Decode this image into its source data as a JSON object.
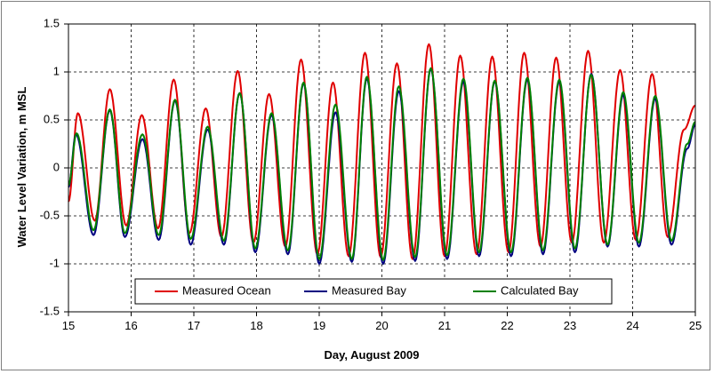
{
  "chart_data": {
    "type": "line",
    "title": "",
    "xlabel": "Day, August 2009",
    "ylabel": "Water Level Variation, m MSL",
    "xlim": [
      15,
      25
    ],
    "ylim": [
      -1.5,
      1.5
    ],
    "x_ticks": [
      "15",
      "16",
      "17",
      "18",
      "19",
      "20",
      "21",
      "22",
      "23",
      "24",
      "25"
    ],
    "y_ticks": [
      "1.5",
      "1",
      "0.5",
      "0",
      "-0.5",
      "-1",
      "-1.5"
    ],
    "grid": true,
    "legend_position": "bottom",
    "series": [
      {
        "name": "Measured Ocean",
        "color": "#e00000",
        "extrema": [
          [
            15.0,
            -0.35
          ],
          [
            15.15,
            0.57
          ],
          [
            15.42,
            -0.55
          ],
          [
            15.66,
            0.82
          ],
          [
            15.92,
            -0.6
          ],
          [
            16.17,
            0.55
          ],
          [
            16.43,
            -0.63
          ],
          [
            16.68,
            0.92
          ],
          [
            16.93,
            -0.68
          ],
          [
            17.19,
            0.62
          ],
          [
            17.44,
            -0.72
          ],
          [
            17.7,
            1.01
          ],
          [
            17.95,
            -0.78
          ],
          [
            18.2,
            0.77
          ],
          [
            18.46,
            -0.82
          ],
          [
            18.71,
            1.13
          ],
          [
            18.97,
            -0.9
          ],
          [
            19.22,
            0.89
          ],
          [
            19.47,
            -0.92
          ],
          [
            19.73,
            1.2
          ],
          [
            19.98,
            -0.93
          ],
          [
            20.24,
            1.09
          ],
          [
            20.49,
            -0.95
          ],
          [
            20.75,
            1.29
          ],
          [
            21.0,
            -0.92
          ],
          [
            21.25,
            1.17
          ],
          [
            21.51,
            -0.9
          ],
          [
            21.76,
            1.16
          ],
          [
            22.02,
            -0.88
          ],
          [
            22.27,
            1.2
          ],
          [
            22.53,
            -0.82
          ],
          [
            22.78,
            1.15
          ],
          [
            23.03,
            -0.78
          ],
          [
            23.29,
            1.22
          ],
          [
            23.54,
            -0.78
          ],
          [
            23.8,
            1.02
          ],
          [
            24.05,
            -0.75
          ],
          [
            24.31,
            0.98
          ],
          [
            24.56,
            -0.72
          ],
          [
            24.82,
            0.4
          ],
          [
            25.0,
            0.65
          ]
        ]
      },
      {
        "name": "Measured Bay",
        "color": "#000080",
        "extrema": [
          [
            15.0,
            -0.2
          ],
          [
            15.12,
            0.35
          ],
          [
            15.4,
            -0.7
          ],
          [
            15.66,
            0.6
          ],
          [
            15.9,
            -0.72
          ],
          [
            16.18,
            0.3
          ],
          [
            16.44,
            -0.75
          ],
          [
            16.7,
            0.7
          ],
          [
            16.95,
            -0.8
          ],
          [
            17.22,
            0.4
          ],
          [
            17.48,
            -0.8
          ],
          [
            17.73,
            0.78
          ],
          [
            17.98,
            -0.88
          ],
          [
            18.24,
            0.55
          ],
          [
            18.5,
            -0.9
          ],
          [
            18.75,
            0.88
          ],
          [
            19.0,
            -1.0
          ],
          [
            19.26,
            0.58
          ],
          [
            19.52,
            -0.98
          ],
          [
            19.76,
            0.93
          ],
          [
            20.02,
            -1.0
          ],
          [
            20.27,
            0.8
          ],
          [
            20.53,
            -0.97
          ],
          [
            20.78,
            1.03
          ],
          [
            21.04,
            -0.95
          ],
          [
            21.3,
            0.9
          ],
          [
            21.55,
            -0.92
          ],
          [
            21.8,
            0.9
          ],
          [
            22.06,
            -0.92
          ],
          [
            22.32,
            0.92
          ],
          [
            22.57,
            -0.9
          ],
          [
            22.83,
            0.9
          ],
          [
            23.08,
            -0.88
          ],
          [
            23.34,
            0.98
          ],
          [
            23.6,
            -0.82
          ],
          [
            23.85,
            0.76
          ],
          [
            24.1,
            -0.82
          ],
          [
            24.36,
            0.72
          ],
          [
            24.62,
            -0.8
          ],
          [
            24.87,
            0.2
          ],
          [
            25.0,
            0.45
          ]
        ]
      },
      {
        "name": "Calculated Bay",
        "color": "#008000",
        "extrema": [
          [
            15.0,
            -0.18
          ],
          [
            15.13,
            0.36
          ],
          [
            15.4,
            -0.65
          ],
          [
            15.66,
            0.61
          ],
          [
            15.9,
            -0.68
          ],
          [
            16.18,
            0.35
          ],
          [
            16.44,
            -0.7
          ],
          [
            16.7,
            0.71
          ],
          [
            16.95,
            -0.74
          ],
          [
            17.22,
            0.43
          ],
          [
            17.48,
            -0.76
          ],
          [
            17.73,
            0.78
          ],
          [
            17.98,
            -0.84
          ],
          [
            18.24,
            0.57
          ],
          [
            18.5,
            -0.86
          ],
          [
            18.75,
            0.89
          ],
          [
            19.0,
            -0.95
          ],
          [
            19.26,
            0.66
          ],
          [
            19.52,
            -0.95
          ],
          [
            19.76,
            0.95
          ],
          [
            20.02,
            -0.96
          ],
          [
            20.27,
            0.85
          ],
          [
            20.53,
            -0.93
          ],
          [
            20.78,
            1.04
          ],
          [
            21.04,
            -0.91
          ],
          [
            21.3,
            0.93
          ],
          [
            21.55,
            -0.88
          ],
          [
            21.8,
            0.91
          ],
          [
            22.06,
            -0.88
          ],
          [
            22.32,
            0.94
          ],
          [
            22.57,
            -0.86
          ],
          [
            22.83,
            0.92
          ],
          [
            23.08,
            -0.84
          ],
          [
            23.34,
            0.97
          ],
          [
            23.6,
            -0.8
          ],
          [
            23.85,
            0.79
          ],
          [
            24.1,
            -0.78
          ],
          [
            24.36,
            0.75
          ],
          [
            24.62,
            -0.76
          ],
          [
            24.87,
            0.25
          ],
          [
            25.0,
            0.48
          ]
        ]
      }
    ]
  }
}
